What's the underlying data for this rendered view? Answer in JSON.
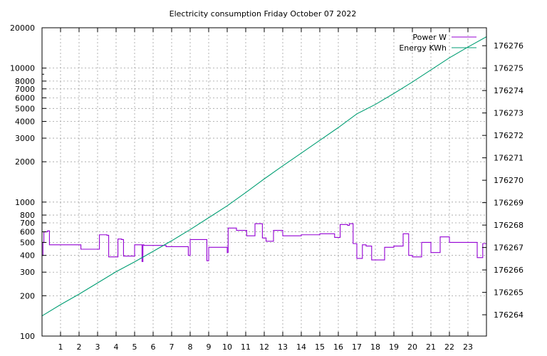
{
  "chart_data": {
    "type": "line",
    "title": "Electricity consumption Friday October 07 2022",
    "xlabel": "",
    "ylabel": "",
    "x_ticks": [
      1,
      2,
      3,
      4,
      5,
      6,
      7,
      8,
      9,
      10,
      11,
      12,
      13,
      14,
      15,
      16,
      17,
      18,
      19,
      20,
      21,
      22,
      23
    ],
    "xlim": [
      0,
      24
    ],
    "y_left": {
      "scale": "log",
      "ylim": [
        100,
        20000
      ],
      "ticks": [
        100,
        200,
        300,
        400,
        500,
        600,
        700,
        800,
        1000,
        2000,
        3000,
        4000,
        5000,
        6000,
        7000,
        8000,
        10000,
        20000
      ],
      "tick_labels": [
        "100",
        "200",
        "300",
        "400",
        "500",
        "600",
        "700",
        "800",
        "1000",
        "2000",
        "3000",
        "4000",
        "5000",
        "6000",
        "7000",
        "8000",
        "10000",
        "20000"
      ]
    },
    "y_right": {
      "scale": "linear",
      "ylim": [
        176263.05,
        176276.8
      ],
      "ticks": [
        176264,
        176265,
        176266,
        176267,
        176268,
        176269,
        176270,
        176271,
        176272,
        176273,
        176274,
        176275,
        176276
      ],
      "tick_labels": [
        "176264",
        "176265",
        "176266",
        "176267",
        "176268",
        "176269",
        "176270",
        "176271",
        "176272",
        "176273",
        "176274",
        "176275",
        "176276"
      ]
    },
    "grid": true,
    "legend_position": "top-right",
    "series": [
      {
        "name": "Power W",
        "axis": "left",
        "color": "#9400d3",
        "step": true,
        "x": [
          0,
          0.05,
          0.1,
          0.25,
          0.3,
          0.4,
          0.55,
          1.0,
          1.5,
          2.0,
          2.1,
          2.5,
          3.0,
          3.1,
          3.5,
          3.6,
          4.0,
          4.1,
          4.3,
          4.4,
          4.9,
          5.0,
          5.3,
          5.4,
          5.45,
          5.5,
          6.0,
          6.5,
          6.7,
          7.0,
          7.5,
          7.9,
          8.0,
          8.1,
          8.5,
          8.9,
          9.0,
          9.5,
          10.0,
          10.05,
          10.5,
          11.0,
          11.05,
          11.5,
          11.6,
          11.9,
          12.0,
          12.1,
          12.5,
          12.8,
          13.0,
          13.5,
          13.8,
          14.0,
          14.5,
          14.6,
          15.0,
          15.5,
          15.8,
          16.0,
          16.1,
          16.5,
          16.6,
          16.8,
          17.0,
          17.3,
          17.5,
          17.8,
          18.0,
          18.5,
          18.8,
          19.0,
          19.4,
          19.5,
          19.8,
          20.0,
          20.5,
          20.8,
          21.0,
          21.5,
          21.8,
          22.0,
          22.5,
          22.8,
          23.0,
          23.5,
          23.8,
          24.0
        ],
        "values": [
          400,
          500,
          600,
          600,
          610,
          480,
          480,
          480,
          480,
          480,
          445,
          445,
          445,
          570,
          565,
          390,
          390,
          530,
          525,
          395,
          395,
          480,
          480,
          360,
          480,
          475,
          475,
          475,
          465,
          465,
          465,
          400,
          525,
          525,
          525,
          365,
          460,
          460,
          420,
          640,
          615,
          615,
          560,
          690,
          690,
          540,
          540,
          510,
          615,
          615,
          560,
          560,
          560,
          570,
          570,
          570,
          580,
          580,
          545,
          545,
          680,
          670,
          690,
          490,
          380,
          480,
          470,
          370,
          370,
          460,
          460,
          470,
          470,
          580,
          400,
          390,
          500,
          500,
          420,
          550,
          550,
          500,
          500,
          500,
          500,
          385,
          490,
          490
        ]
      },
      {
        "name": "Energy KWh",
        "axis": "right",
        "color": "#009e73",
        "step": false,
        "x": [
          0,
          1,
          2,
          3,
          4,
          5,
          6,
          7,
          8,
          9,
          10,
          11,
          12,
          13,
          14,
          15,
          16,
          17,
          18,
          19,
          20,
          21,
          22,
          23,
          24
        ],
        "values": [
          176263.95,
          176264.45,
          176264.92,
          176265.42,
          176265.92,
          176266.36,
          176266.83,
          176267.3,
          176267.8,
          176268.33,
          176268.86,
          176269.45,
          176270.06,
          176270.64,
          176271.21,
          176271.78,
          176272.35,
          176272.96,
          176273.38,
          176273.87,
          176274.38,
          176274.92,
          176275.46,
          176275.94,
          176276.4
        ]
      }
    ]
  }
}
